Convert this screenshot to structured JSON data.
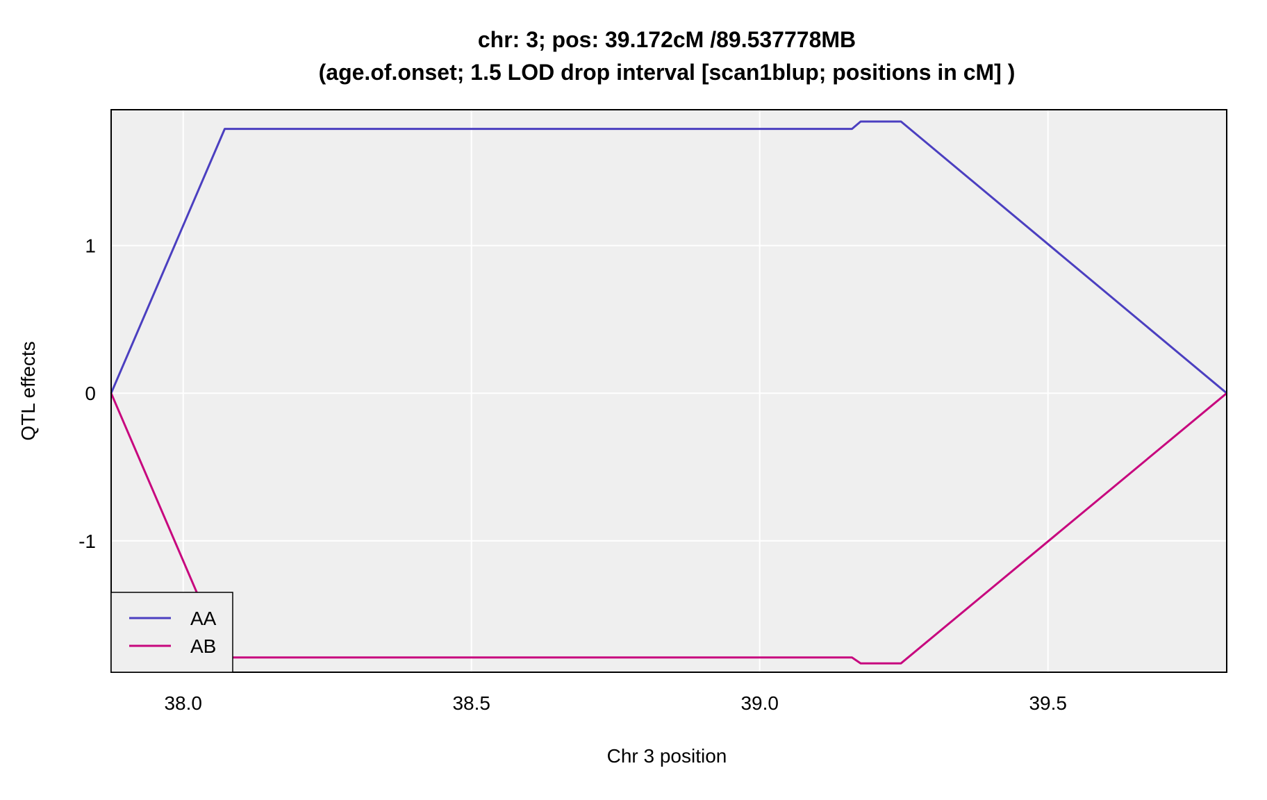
{
  "chart_data": {
    "type": "line",
    "title": "chr: 3; pos: 39.172cM /89.537778MB",
    "subtitle": "(age.of.onset; 1.5 LOD drop interval [scan1blup; positions in cM] )",
    "xlabel": "Chr 3 position",
    "ylabel": "QTL effects",
    "xlim": [
      37.875,
      39.81
    ],
    "ylim": [
      -1.89,
      1.92
    ],
    "x_ticks": [
      38.0,
      38.5,
      39.0,
      39.5
    ],
    "x_tick_labels": [
      "38.0",
      "38.5",
      "39.0",
      "39.5"
    ],
    "y_ticks": [
      -1,
      0,
      1
    ],
    "y_tick_labels": [
      "-1",
      "0",
      "1"
    ],
    "grid": true,
    "legend_position": "bottom-left",
    "series": [
      {
        "name": "AA",
        "color": "#4b3fc0",
        "x": [
          37.875,
          38.072,
          38.35,
          39.16,
          39.175,
          39.245,
          39.81
        ],
        "y": [
          0,
          1.79,
          1.79,
          1.79,
          1.84,
          1.84,
          0
        ]
      },
      {
        "name": "AB",
        "color": "#c7077e",
        "x": [
          37.875,
          38.072,
          38.35,
          39.16,
          39.175,
          39.245,
          39.81
        ],
        "y": [
          0,
          -1.79,
          -1.79,
          -1.79,
          -1.83,
          -1.83,
          0
        ]
      }
    ]
  }
}
